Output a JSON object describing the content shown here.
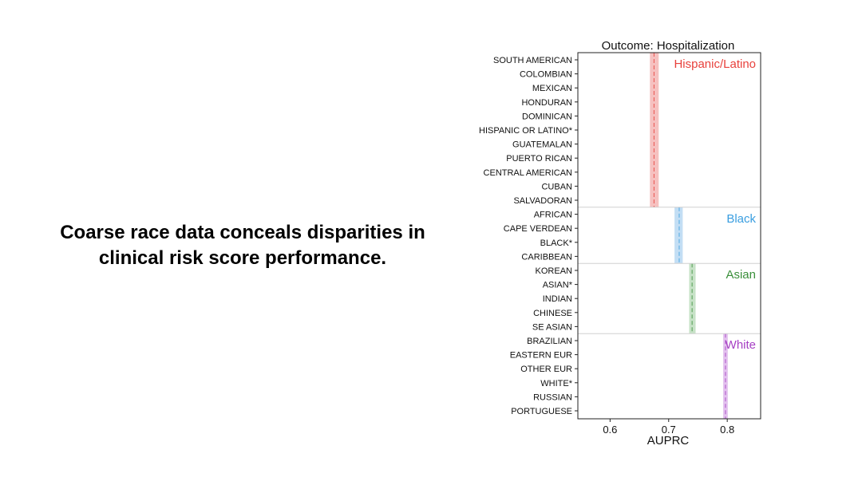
{
  "slide": {
    "headline_line1": "Coarse race data conceals disparities in",
    "headline_line2": "clinical risk score performance."
  },
  "chart_data": {
    "type": "interval",
    "title": "Outcome: Hospitalization",
    "xlabel": "AUPRC",
    "ylabel": "",
    "xlim": [
      0.545,
      0.857
    ],
    "xticks": [
      0.6,
      0.7,
      0.8
    ],
    "xtick_labels": [
      "0.6",
      "0.7",
      "0.8"
    ],
    "categories": [
      "SOUTH AMERICAN",
      "COLOMBIAN",
      "MEXICAN",
      "HONDURAN",
      "DOMINICAN",
      "HISPANIC OR LATINO*",
      "GUATEMALAN",
      "PUERTO RICAN",
      "CENTRAL AMERICAN",
      "CUBAN",
      "SALVADORAN",
      "AFRICAN",
      "CAPE VERDEAN",
      "BLACK*",
      "CARIBBEAN",
      "KOREAN",
      "ASIAN*",
      "INDIAN",
      "CHINESE",
      "SE ASIAN",
      "BRAZILIAN",
      "EASTERN EUR",
      "OTHER EUR",
      "WHITE*",
      "RUSSIAN",
      "PORTUGUESE"
    ],
    "groups": [
      {
        "name": "Hispanic/Latino",
        "color": "#e8413c",
        "band_color": "#f6c1c0",
        "mean": 0.675,
        "ci": [
          0.668,
          0.683
        ],
        "count": 11
      },
      {
        "name": "Black",
        "color": "#3a9ee0",
        "band_color": "#c3def4",
        "mean": 0.718,
        "ci": [
          0.71,
          0.724
        ],
        "count": 4
      },
      {
        "name": "Asian",
        "color": "#3a8f3a",
        "band_color": "#c7e2c7",
        "mean": 0.74,
        "ci": [
          0.735,
          0.746
        ],
        "count": 5
      },
      {
        "name": "White",
        "color": "#a63fc4",
        "band_color": "#e3c3ee",
        "mean": 0.797,
        "ci": [
          0.793,
          0.801
        ],
        "count": 6
      }
    ],
    "grid": false,
    "legend": "none"
  }
}
